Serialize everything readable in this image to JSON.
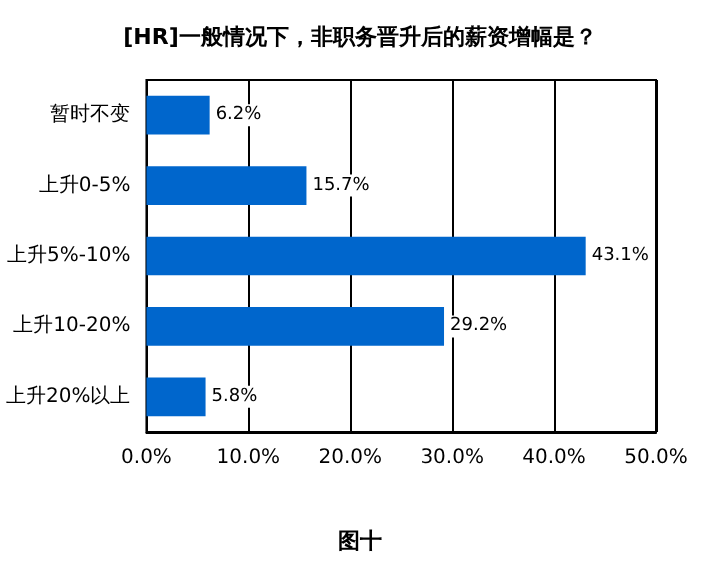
{
  "chart_data": {
    "type": "bar",
    "orientation": "horizontal",
    "title": "[HR]一般情况下，非职务晋升后的薪资增幅是？",
    "categories": [
      "暂时不变",
      "上升0-5%",
      "上升5%-10%",
      "上升10-20%",
      "上升20%以上"
    ],
    "values": [
      6.2,
      15.7,
      43.1,
      29.2,
      5.8
    ],
    "value_labels": [
      "6.2%",
      "15.7%",
      "43.1%",
      "29.2%",
      "5.8%"
    ],
    "color": "#0066cc",
    "xlim": [
      0,
      50
    ],
    "xticks": [
      {
        "value": 0,
        "label": "0.0%"
      },
      {
        "value": 10,
        "label": "10.0%"
      },
      {
        "value": 20,
        "label": "20.0%"
      },
      {
        "value": 30,
        "label": "30.0%"
      },
      {
        "value": 40,
        "label": "40.0%"
      },
      {
        "value": 50,
        "label": "50.0%"
      }
    ],
    "grid": "x",
    "annotations": [
      "图十"
    ]
  }
}
